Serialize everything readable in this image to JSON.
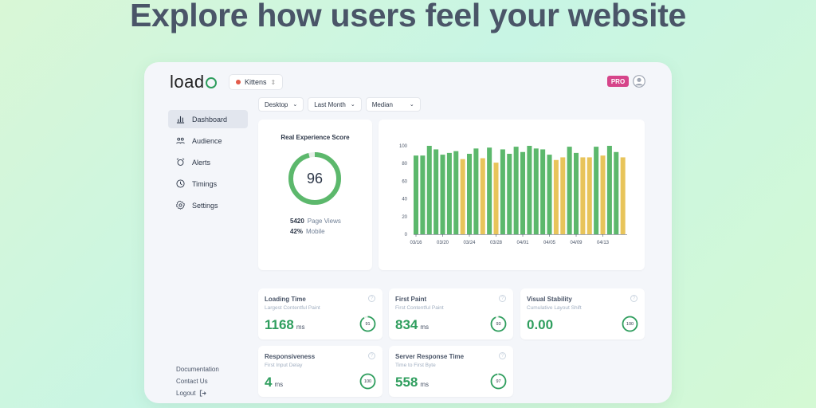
{
  "hero": {
    "title": "Explore how users feel your website"
  },
  "header": {
    "logo": "load",
    "site": "Kittens",
    "badge": "PRO"
  },
  "nav": [
    {
      "label": "Dashboard",
      "icon": "bar-chart-icon",
      "active": true
    },
    {
      "label": "Audience",
      "icon": "users-icon",
      "active": false
    },
    {
      "label": "Alerts",
      "icon": "alarm-icon",
      "active": false
    },
    {
      "label": "Timings",
      "icon": "clock-icon",
      "active": false
    },
    {
      "label": "Settings",
      "icon": "gear-icon",
      "active": false
    }
  ],
  "footer_links": {
    "documentation": "Documentation",
    "contact": "Contact Us",
    "logout": "Logout"
  },
  "filters": {
    "device": "Desktop",
    "period": "Last Month",
    "aggregate": "Median"
  },
  "score": {
    "title": "Real Experience Score",
    "value": "96",
    "page_views_value": "5420",
    "page_views_label": "Page Views",
    "mobile_value": "42%",
    "mobile_label": "Mobile"
  },
  "chart_data": {
    "type": "bar",
    "title": "",
    "xlabel": "",
    "ylabel": "",
    "ylim": [
      0,
      100
    ],
    "yticks": [
      "0",
      "20",
      "40",
      "60",
      "80",
      "100"
    ],
    "xtick_labels": [
      "03/16",
      "03/20",
      "03/24",
      "03/28",
      "04/01",
      "04/05",
      "04/09",
      "04/13"
    ],
    "x": [
      "03/16",
      "03/17",
      "03/18",
      "03/19",
      "03/20",
      "03/21",
      "03/22",
      "03/23",
      "03/24",
      "03/25",
      "03/26",
      "03/27",
      "03/28",
      "03/29",
      "03/30",
      "03/31",
      "04/01",
      "04/02",
      "04/03",
      "04/04",
      "04/05",
      "04/06",
      "04/07",
      "04/08",
      "04/09",
      "04/10",
      "04/11",
      "04/12",
      "04/13",
      "04/14",
      "04/15",
      "04/16"
    ],
    "values": [
      89,
      89,
      100,
      96,
      90,
      92,
      94,
      85,
      91,
      97,
      86,
      98,
      81,
      96,
      91,
      99,
      93,
      100,
      97,
      96,
      90,
      84,
      87,
      99,
      92,
      87,
      87,
      99,
      89,
      100,
      93,
      87
    ],
    "status": [
      "good",
      "good",
      "good",
      "good",
      "good",
      "good",
      "good",
      "needs-improvement",
      "good",
      "good",
      "needs-improvement",
      "good",
      "needs-improvement",
      "good",
      "good",
      "good",
      "good",
      "good",
      "good",
      "good",
      "good",
      "needs-improvement",
      "needs-improvement",
      "good",
      "good",
      "needs-improvement",
      "needs-improvement",
      "good",
      "needs-improvement",
      "good",
      "good",
      "needs-improvement"
    ],
    "colors": {
      "good": "#5cb86c",
      "needs-improvement": "#e8c45a"
    },
    "grid": false
  },
  "metrics": [
    {
      "title": "Loading Time",
      "subtitle": "Largest Contentful Paint",
      "value": "1168",
      "unit": "ms",
      "score": "91",
      "score_fraction": 0.91
    },
    {
      "title": "First Paint",
      "subtitle": "First Contentful Paint",
      "value": "834",
      "unit": "ms",
      "score": "93",
      "score_fraction": 0.93
    },
    {
      "title": "Visual Stability",
      "subtitle": "Cumulative Layout Shift",
      "value": "0.00",
      "unit": "",
      "score": "100",
      "score_fraction": 1.0
    },
    {
      "title": "Responsiveness",
      "subtitle": "First Input Delay",
      "value": "4",
      "unit": "ms",
      "score": "100",
      "score_fraction": 1.0
    },
    {
      "title": "Server Response Time",
      "subtitle": "Time to First Byte",
      "value": "558",
      "unit": "ms",
      "score": "97",
      "score_fraction": 0.97
    }
  ],
  "colors": {
    "accent": "#2f9e5e",
    "ring": "#5cb86c",
    "badge": "#d6458a"
  },
  "help_glyph": "?"
}
